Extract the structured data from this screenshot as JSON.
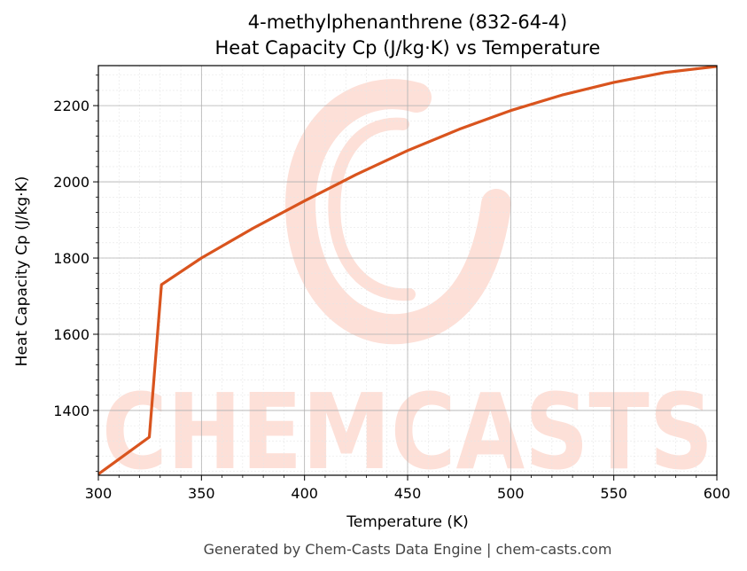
{
  "chart_data": {
    "type": "line",
    "title": "4-methylphenanthrene (832-64-4)",
    "subtitle": "Heat Capacity Cp (J/kg·K) vs Temperature",
    "xlabel": "Temperature (K)",
    "ylabel": "Heat Capacity Cp (J/kg·K)",
    "xlim": [
      300,
      600
    ],
    "ylim": [
      1230,
      2305
    ],
    "x_ticks": [
      300,
      350,
      400,
      450,
      500,
      550,
      600
    ],
    "y_ticks": [
      1400,
      1600,
      1800,
      2000,
      2200
    ],
    "grid": true,
    "series": [
      {
        "color": "#d9541e",
        "x": [
          300,
          324.7,
          330.6,
          350,
          375,
          400,
          425,
          450,
          475,
          500,
          525,
          550,
          575,
          600
        ],
        "y": [
          1233,
          1330,
          1730,
          1800,
          1878,
          1950,
          2019,
          2082,
          2138,
          2187,
          2228,
          2261,
          2287,
          2303
        ]
      }
    ]
  },
  "watermark": {
    "text": "CHEMCASTS",
    "color": "#fde0d8"
  },
  "footer": "Generated by Chem-Casts Data Engine | chem-casts.com"
}
